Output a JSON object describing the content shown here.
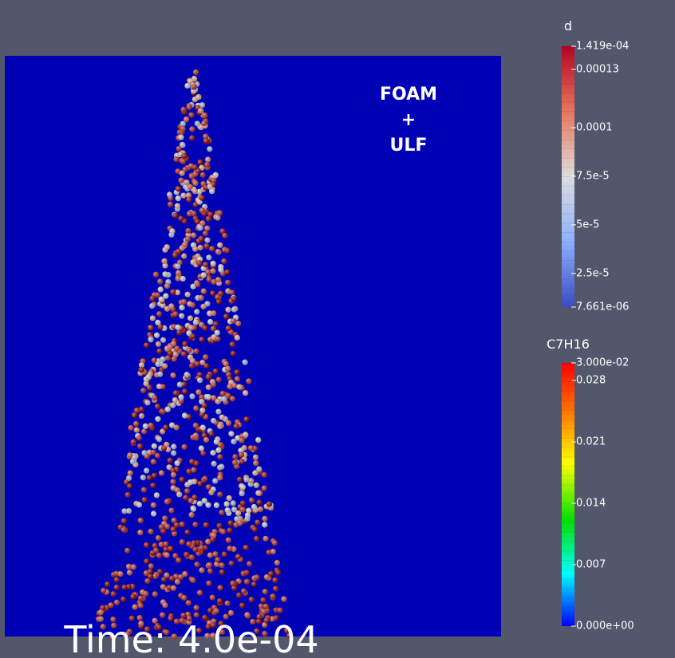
{
  "viewport": {
    "annotation": [
      "FOAM",
      "+",
      "ULF"
    ],
    "time_label": "Time: 4.0e-04"
  },
  "legends": [
    {
      "title": "d",
      "labels": [
        "1.419e-04",
        "0.00013",
        "0.0001",
        "7.5e-5",
        "5e-5",
        "2.5e-5",
        "7.661e-06"
      ]
    },
    {
      "title": "C7H16",
      "labels": [
        "3.000e-02",
        "0.028",
        "0.021",
        "0.014",
        "0.007",
        "0.000e+00"
      ]
    }
  ]
}
